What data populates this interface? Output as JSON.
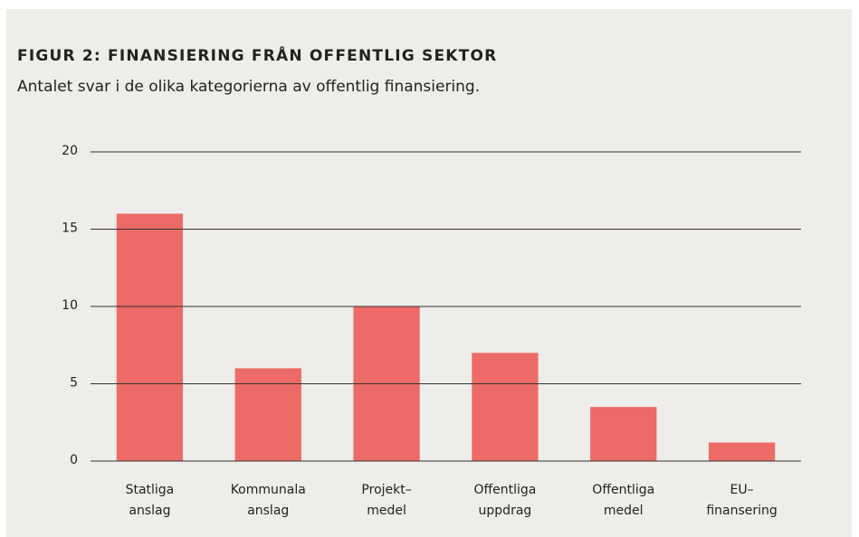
{
  "chart_data": {
    "type": "bar",
    "title": "FIGUR 2: FINANSIERING FRÅN OFFENTLIG SEKTOR",
    "subtitle": "Antalet svar i de olika kategorierna av offentlig finansiering.",
    "categories": [
      [
        "Statliga",
        "anslag"
      ],
      [
        "Kommunala",
        "anslag"
      ],
      [
        "Projekt–",
        "medel"
      ],
      [
        "Offentliga",
        "uppdrag"
      ],
      [
        "Offentliga",
        "medel"
      ],
      [
        "EU–",
        "finansering"
      ]
    ],
    "values": [
      16,
      6,
      10,
      7,
      3.5,
      1.2
    ],
    "color": "#ec6b66",
    "ylim": [
      0,
      20
    ],
    "yticks": [
      0,
      5,
      10,
      15,
      20
    ],
    "grid": true
  }
}
